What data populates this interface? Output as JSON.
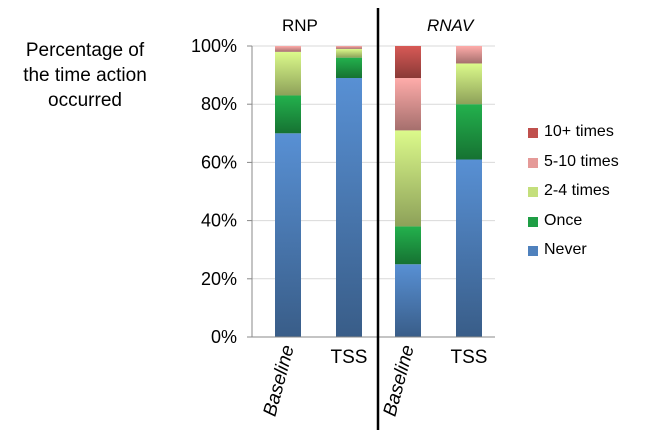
{
  "chart_data": {
    "type": "bar",
    "stacked": true,
    "ylabel": [
      "Percentage of",
      "the time action",
      "occurred"
    ],
    "yticks": [
      "0%",
      "20%",
      "40%",
      "60%",
      "80%",
      "100%"
    ],
    "ylim": [
      0,
      100
    ],
    "grid": true,
    "legend_position": "right",
    "panels": [
      {
        "title": "RNP",
        "italic": false,
        "categories": [
          {
            "label": "Baseline",
            "italic": true
          },
          {
            "label": "TSS",
            "italic": false
          }
        ]
      },
      {
        "title": "RNAV",
        "italic": true,
        "categories": [
          {
            "label": "Baseline",
            "italic": true
          },
          {
            "label": "TSS",
            "italic": false
          }
        ]
      }
    ],
    "categories": [
      "RNP Baseline",
      "RNP TSS",
      "RNAV Baseline",
      "RNAV TSS"
    ],
    "series": [
      {
        "name": "Never",
        "color": "#4f81bd",
        "values": [
          70,
          89,
          25,
          61
        ]
      },
      {
        "name": "Once",
        "color": "#1f9e45",
        "values": [
          13,
          7,
          13,
          19
        ]
      },
      {
        "name": "2-4 times",
        "color": "#c4df7c",
        "values": [
          15,
          3,
          33,
          14
        ]
      },
      {
        "name": "5-10 times",
        "color": "#e59a98",
        "values": [
          2,
          1,
          18,
          6
        ]
      },
      {
        "name": "10+ times",
        "color": "#c0504d",
        "values": [
          0,
          0,
          11,
          0
        ]
      }
    ]
  }
}
